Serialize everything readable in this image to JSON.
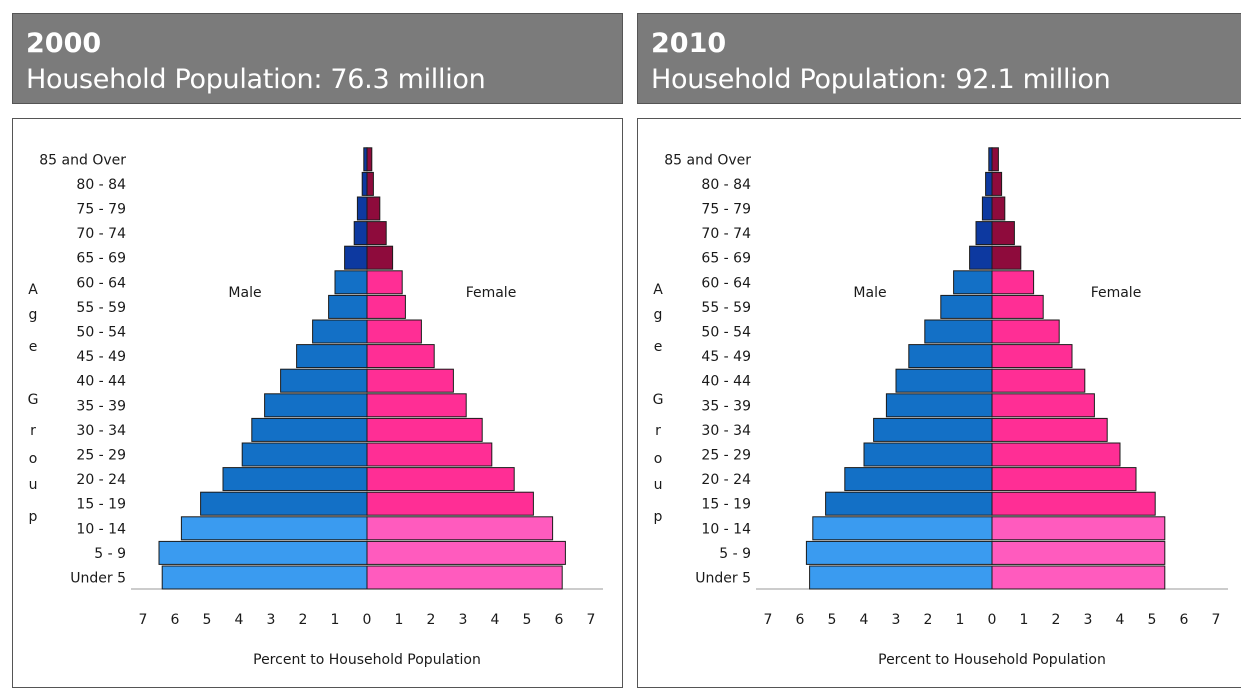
{
  "chart_data": [
    {
      "type": "bar",
      "title": "2000",
      "subtitle": "Household Population: 76.3 million",
      "categories": [
        "Under 5",
        "5 - 9",
        "10 - 14",
        "15 - 19",
        "20 - 24",
        "25 - 29",
        "30 - 34",
        "35 - 39",
        "40 - 44",
        "45 - 49",
        "50 - 54",
        "55 - 59",
        "60 - 64",
        "65 - 69",
        "70 - 74",
        "75 - 79",
        "80 - 84",
        "85 and Over"
      ],
      "series": [
        {
          "name": "Male",
          "values": [
            6.4,
            6.5,
            5.8,
            5.2,
            4.5,
            3.9,
            3.6,
            3.2,
            2.7,
            2.2,
            1.7,
            1.2,
            1.0,
            0.7,
            0.4,
            0.3,
            0.15,
            0.1
          ]
        },
        {
          "name": "Female",
          "values": [
            6.1,
            6.2,
            5.8,
            5.2,
            4.6,
            3.9,
            3.6,
            3.1,
            2.7,
            2.1,
            1.7,
            1.2,
            1.1,
            0.8,
            0.6,
            0.4,
            0.2,
            0.15
          ]
        }
      ],
      "xlabel": "Percent to Household Population",
      "ylabel": "Age Group",
      "xlim": [
        -7,
        7
      ],
      "ticks": [
        "7",
        "6",
        "5",
        "4",
        "3",
        "2",
        "1",
        "0",
        "1",
        "2",
        "3",
        "4",
        "5",
        "6",
        "7"
      ],
      "grid": false
    },
    {
      "type": "bar",
      "title": "2010",
      "subtitle": "Household Population: 92.1 million",
      "categories": [
        "Under 5",
        "5 - 9",
        "10 - 14",
        "15 - 19",
        "20 - 24",
        "25 - 29",
        "30 - 34",
        "35 - 39",
        "40 - 44",
        "45 - 49",
        "50 - 54",
        "55 - 59",
        "60 - 64",
        "65 - 69",
        "70 - 74",
        "75 - 79",
        "80 - 84",
        "85 and Over"
      ],
      "series": [
        {
          "name": "Male",
          "values": [
            5.7,
            5.8,
            5.6,
            5.2,
            4.6,
            4.0,
            3.7,
            3.3,
            3.0,
            2.6,
            2.1,
            1.6,
            1.2,
            0.7,
            0.5,
            0.3,
            0.2,
            0.1
          ]
        },
        {
          "name": "Female",
          "values": [
            5.4,
            5.4,
            5.4,
            5.1,
            4.5,
            4.0,
            3.6,
            3.2,
            2.9,
            2.5,
            2.1,
            1.6,
            1.3,
            0.9,
            0.7,
            0.4,
            0.3,
            0.2
          ]
        }
      ],
      "xlabel": "Percent to Household Population",
      "ylabel": "Age Group",
      "xlim": [
        -7,
        7
      ],
      "ticks": [
        "7",
        "6",
        "5",
        "4",
        "3",
        "2",
        "1",
        "0",
        "1",
        "2",
        "3",
        "4",
        "5",
        "6",
        "7"
      ],
      "grid": false
    }
  ],
  "colors": {
    "male_young": "#3a9bf0",
    "male_working": "#1370c6",
    "male_old": "#0d39a0",
    "female_young": "#ff5bbe",
    "female_working": "#ff2e95",
    "female_old": "#8e0b3c",
    "header_bg": "#7b7b7b"
  }
}
